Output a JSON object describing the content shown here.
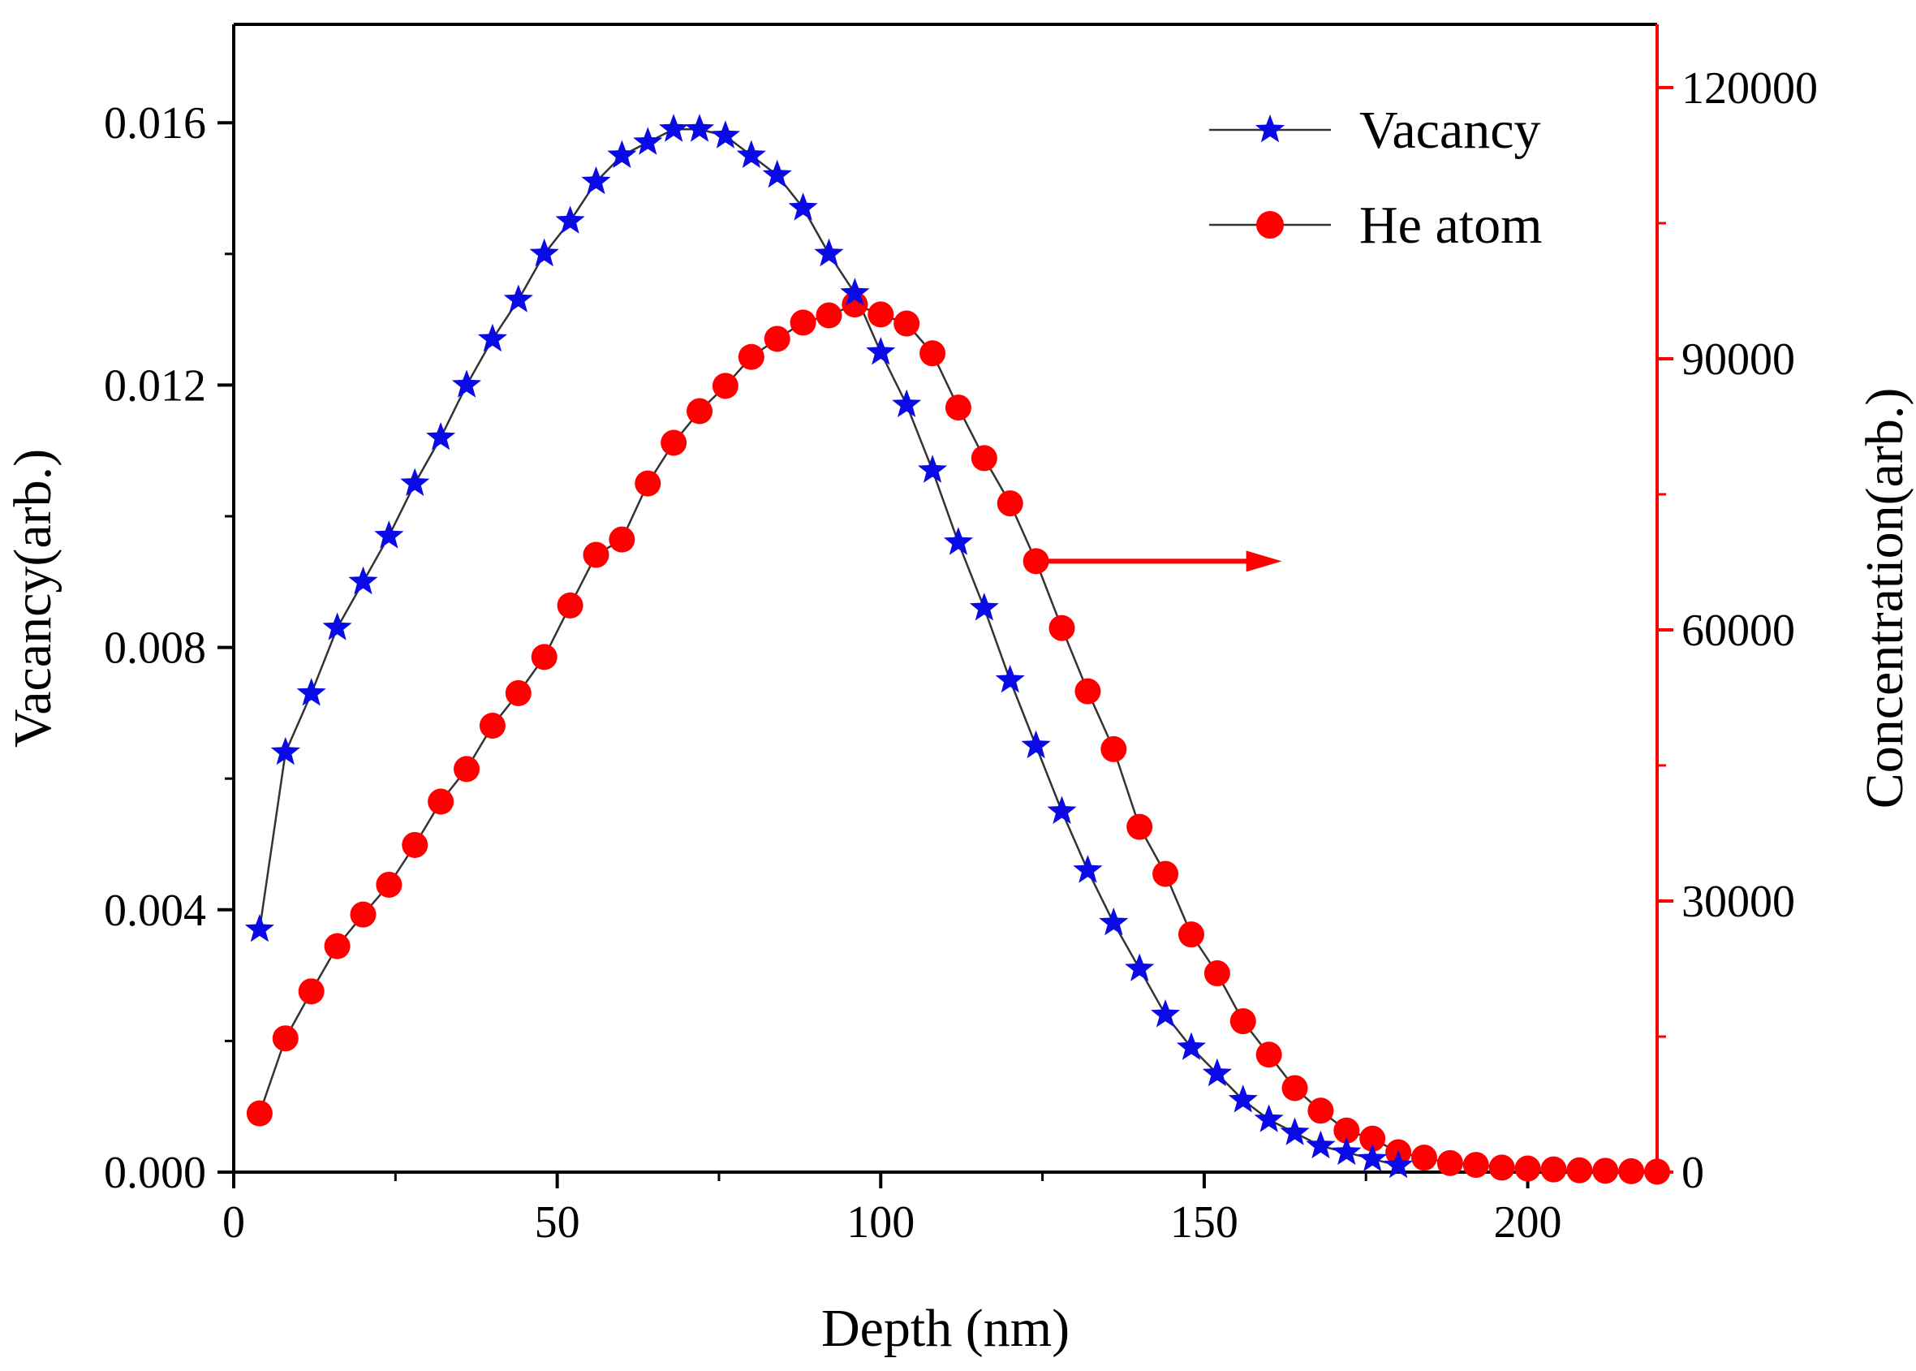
{
  "chart_data": {
    "type": "line",
    "title": "",
    "xlabel": "Depth (nm)",
    "ylabel_left": "Vacancy(arb.)",
    "ylabel_right": "Concentration(arb.)",
    "xlim": [
      0,
      220
    ],
    "ylim_left": [
      0,
      0.0175
    ],
    "ylim_right": [
      0,
      127000
    ],
    "x_ticks": [
      0,
      50,
      100,
      150,
      200
    ],
    "x_tick_labels": [
      "0",
      "50",
      "100",
      "150",
      "200"
    ],
    "y_left_ticks": [
      0,
      0.004,
      0.008,
      0.012,
      0.016
    ],
    "y_left_tick_labels": [
      "0.000",
      "0.004",
      "0.008",
      "0.012",
      "0.016"
    ],
    "y_right_ticks": [
      0,
      30000,
      60000,
      90000,
      120000
    ],
    "y_right_tick_labels": [
      "0",
      "30000",
      "60000",
      "90000",
      "120000"
    ],
    "colors": {
      "vacancy": "#0a0ae6",
      "he_atom": "#ff0000",
      "line": "#333333",
      "right_axis": "#ff0000",
      "arrow": "#ff0000"
    },
    "legend": {
      "position": "top-right",
      "entries": [
        {
          "label": "Vacancy",
          "marker": "star",
          "color": "#0a0ae6"
        },
        {
          "label": "He atom",
          "marker": "circle",
          "color": "#ff0000"
        }
      ]
    },
    "annotation": {
      "type": "arrow",
      "points_to": "right-axis",
      "from": [
        124,
        67600
      ],
      "to": [
        162,
        67600
      ]
    },
    "series": [
      {
        "name": "Vacancy",
        "axis": "left",
        "marker": "star",
        "x": [
          4,
          8,
          12,
          16,
          20,
          24,
          28,
          32,
          36,
          40,
          44,
          48,
          52,
          56,
          60,
          64,
          68,
          72,
          76,
          80,
          84,
          88,
          92,
          96,
          100,
          104,
          108,
          112,
          116,
          120,
          124,
          128,
          132,
          136,
          140,
          144,
          148,
          152,
          156,
          160,
          164,
          168,
          172,
          176,
          180
        ],
        "y": [
          0.0037,
          0.0064,
          0.0073,
          0.0083,
          0.009,
          0.0097,
          0.0105,
          0.0112,
          0.012,
          0.0127,
          0.0133,
          0.014,
          0.0145,
          0.0151,
          0.0155,
          0.0157,
          0.0159,
          0.0159,
          0.0158,
          0.0155,
          0.0152,
          0.0147,
          0.014,
          0.0134,
          0.0125,
          0.0117,
          0.0107,
          0.0096,
          0.0086,
          0.0075,
          0.0065,
          0.0055,
          0.0046,
          0.0038,
          0.0031,
          0.0024,
          0.0019,
          0.0015,
          0.0011,
          0.0008,
          0.0006,
          0.0004,
          0.0003,
          0.0002,
          0.0001
        ]
      },
      {
        "name": "He atom",
        "axis": "right",
        "marker": "circle",
        "x": [
          4,
          8,
          12,
          16,
          20,
          24,
          28,
          32,
          36,
          40,
          44,
          48,
          52,
          56,
          60,
          64,
          68,
          72,
          76,
          80,
          84,
          88,
          92,
          96,
          100,
          104,
          108,
          112,
          116,
          120,
          124,
          128,
          132,
          136,
          140,
          144,
          148,
          152,
          156,
          160,
          164,
          168,
          172,
          176,
          180,
          184,
          188,
          192,
          196,
          200,
          204,
          208,
          212,
          216,
          220
        ],
        "y": [
          6500,
          14800,
          20000,
          25000,
          28500,
          31800,
          36200,
          41000,
          44600,
          49400,
          53000,
          57000,
          62700,
          68300,
          70000,
          76200,
          80700,
          84200,
          87000,
          90200,
          92200,
          94000,
          94800,
          96000,
          94900,
          93900,
          90600,
          84600,
          79000,
          74000,
          67600,
          60200,
          53200,
          46800,
          38200,
          33000,
          26300,
          22000,
          16700,
          13000,
          9300,
          6800,
          4600,
          3700,
          2200,
          1600,
          1000,
          800,
          500,
          400,
          300,
          200,
          150,
          100,
          50
        ]
      }
    ]
  }
}
